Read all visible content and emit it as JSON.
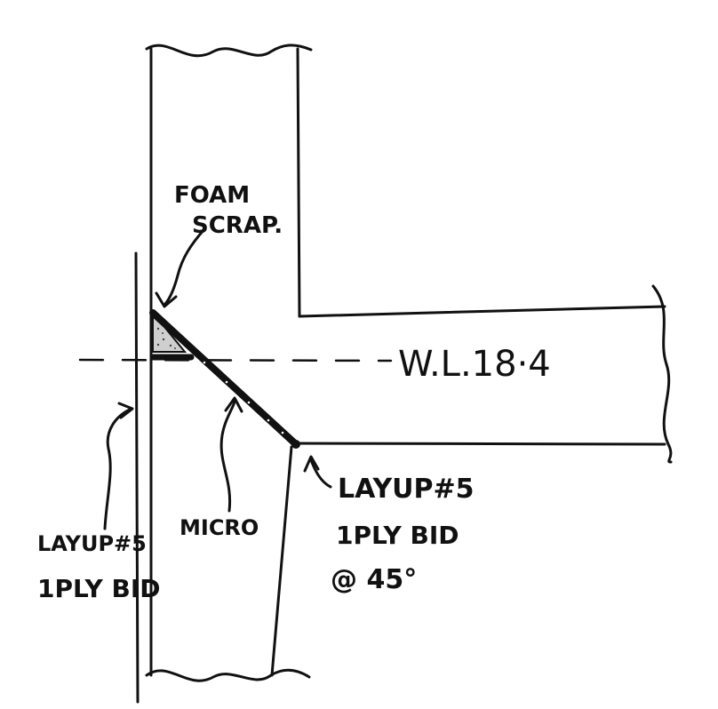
{
  "labels": {
    "foam_line1": "FOAM",
    "foam_line2": "SCRAP.",
    "waterline": "W.L.18·4",
    "micro": "MICRO",
    "left_layup_line1": "LAYUP#5",
    "left_layup_line2": "1PLY BID",
    "right_layup_line1": "LAYUP#5",
    "right_layup_line2": "1PLY BID",
    "right_layup_line3": "@ 45°"
  }
}
